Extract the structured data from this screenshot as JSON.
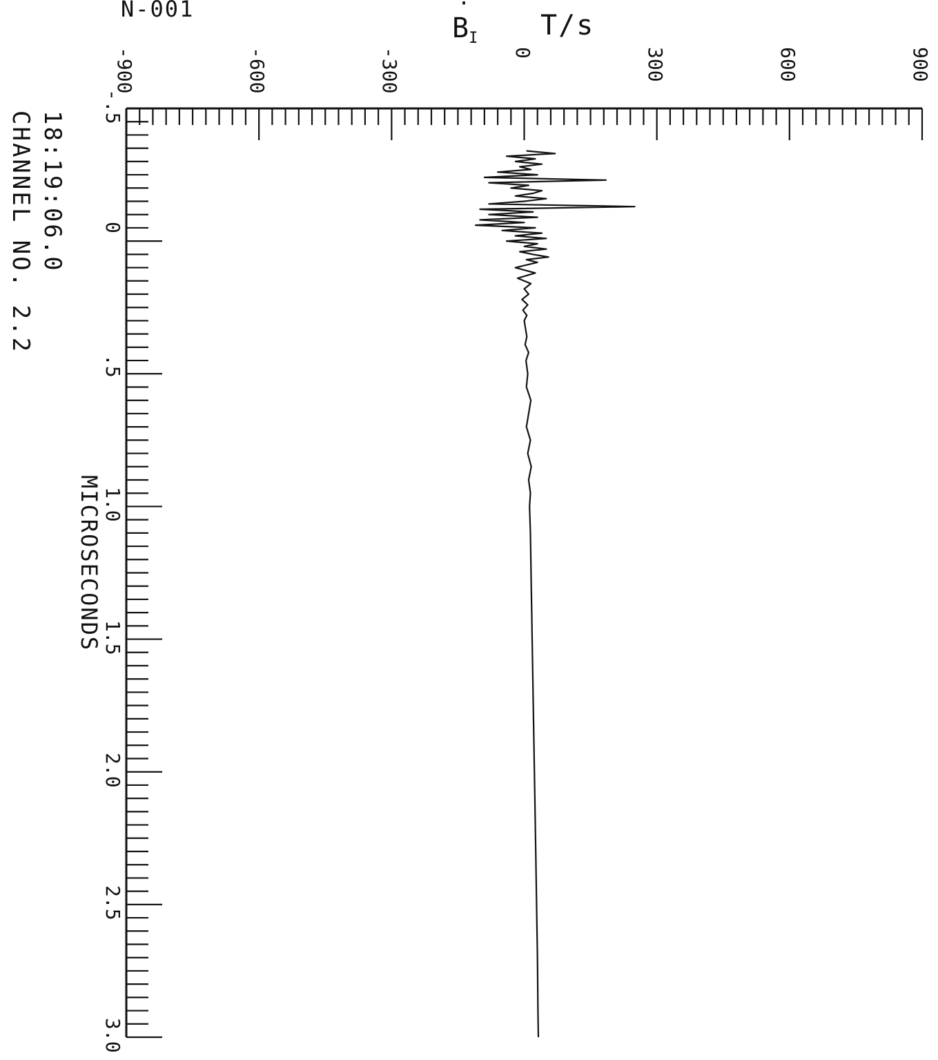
{
  "header": {
    "corner_label": "N-001",
    "quantity_symbol": "B",
    "quantity_subscript": "I",
    "unit": "T/s"
  },
  "info": {
    "time": "18:19:06.0",
    "channel": "CHANNEL NO. 2.2"
  },
  "chart_data": {
    "type": "line",
    "orientation": "rotated-90 (time axis vertical, value axis horizontal)",
    "xlabel": "MICROSECONDS",
    "ylabel": "B I  T/s",
    "xlim": [
      -0.5,
      3.0
    ],
    "ylim": [
      -900,
      900
    ],
    "x_ticks": [
      "-.5",
      "0",
      ".5",
      "1.0",
      "1.5",
      "2.0",
      "2.5",
      "3.0"
    ],
    "y_ticks": [
      "-900",
      "-600",
      "-300",
      "0",
      "300",
      "600",
      "900"
    ],
    "grid": false,
    "series": [
      {
        "x": [
          -0.34,
          -0.33,
          -0.32,
          -0.31,
          -0.3,
          -0.29,
          -0.28,
          -0.27,
          -0.26,
          -0.25,
          -0.24,
          -0.23,
          -0.22,
          -0.21,
          -0.2,
          -0.19,
          -0.18,
          -0.17,
          -0.16,
          -0.15,
          -0.14,
          -0.13,
          -0.12,
          -0.11,
          -0.1,
          -0.09,
          -0.08,
          -0.07,
          -0.06,
          -0.05,
          -0.04,
          -0.03,
          -0.02,
          -0.01,
          0.0,
          0.01,
          0.02,
          0.03,
          0.04,
          0.05,
          0.06,
          0.07,
          0.08,
          0.1,
          0.12,
          0.14,
          0.16,
          0.18,
          0.2,
          0.22,
          0.24,
          0.26,
          0.28,
          0.3,
          0.33,
          0.36,
          0.39,
          0.42,
          0.45,
          0.5,
          0.55,
          0.6,
          0.65,
          0.7,
          0.75,
          0.8,
          0.85,
          0.9,
          0.95,
          1.0,
          1.1,
          1.2,
          1.3,
          1.4,
          1.5,
          1.7,
          1.9,
          2.1,
          2.3,
          2.5,
          2.7,
          2.9,
          3.0
        ],
        "y": [
          5,
          70,
          -40,
          25,
          -20,
          40,
          -10,
          15,
          -60,
          30,
          -90,
          185,
          -80,
          10,
          -30,
          40,
          20,
          -20,
          50,
          0,
          -80,
          250,
          -100,
          20,
          -80,
          30,
          -100,
          0,
          -110,
          25,
          -50,
          40,
          -20,
          50,
          -40,
          30,
          0,
          50,
          -10,
          20,
          55,
          5,
          30,
          -20,
          25,
          -15,
          15,
          0,
          10,
          -5,
          8,
          -3,
          6,
          0,
          3,
          6,
          2,
          10,
          4,
          8,
          5,
          15,
          10,
          5,
          14,
          8,
          16,
          10,
          14,
          12,
          14,
          15,
          16,
          17,
          18,
          20,
          22,
          24,
          26,
          28,
          30,
          31,
          32
        ]
      }
    ]
  }
}
